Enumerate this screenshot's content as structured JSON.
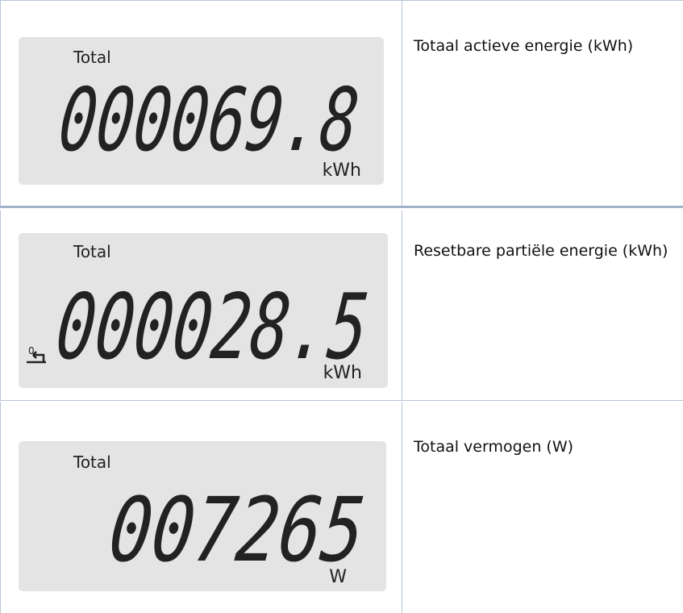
{
  "rows": [
    {
      "display": {
        "label": "Total",
        "reading": "000069.8",
        "unit": "kWh"
      },
      "description": "Totaal actieve energie (kWh)"
    },
    {
      "display": {
        "label": "Total",
        "reset_label": "0",
        "reading": "000028.5",
        "unit": "kWh"
      },
      "description": "Resetbare partiële energie (kWh)"
    },
    {
      "display": {
        "label": "Total",
        "reading": "007265",
        "unit": "W"
      },
      "description": "Totaal vermogen (W)"
    }
  ]
}
